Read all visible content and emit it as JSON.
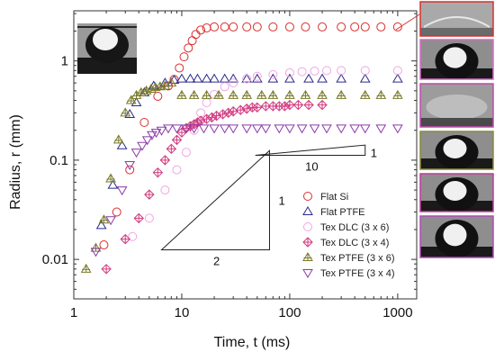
{
  "chart_data": {
    "type": "scatter",
    "xlabel": "Time, t (ms)",
    "ylabel": "Radius, r (mm)",
    "xscale": "log",
    "yscale": "log",
    "xlim": [
      1,
      1500
    ],
    "ylim": [
      0.004,
      3.2
    ],
    "xticks": [
      {
        "v": 1,
        "label": "1"
      },
      {
        "v": 10,
        "label": "10"
      },
      {
        "v": 100,
        "label": "100"
      },
      {
        "v": 1000,
        "label": "1000"
      }
    ],
    "yticks": [
      {
        "v": 0.01,
        "label": "0.01"
      },
      {
        "v": 0.1,
        "label": "0.1"
      },
      {
        "v": 1,
        "label": "1"
      }
    ],
    "legend_position": "lower-right",
    "series": [
      {
        "name": "Flat Si",
        "marker": "circle",
        "color": "#d9302f",
        "x": [
          1.9,
          2.5,
          3.3,
          4.5,
          6.0,
          7.5,
          8.5,
          9.5,
          10.5,
          11.5,
          12.5,
          13.5,
          15,
          17,
          20,
          25,
          30,
          40,
          50,
          70,
          100,
          140,
          200,
          300,
          400,
          500,
          700,
          1000
        ],
        "y": [
          0.014,
          0.03,
          0.08,
          0.24,
          0.44,
          0.56,
          0.65,
          0.85,
          1.1,
          1.35,
          1.6,
          1.85,
          2.05,
          2.15,
          2.2,
          2.2,
          2.2,
          2.2,
          2.2,
          2.2,
          2.2,
          2.2,
          2.2,
          2.2,
          2.2,
          2.2,
          2.2,
          2.2
        ]
      },
      {
        "name": "Flat PTFE",
        "marker": "triangle-up",
        "color": "#2a2a8a",
        "x": [
          1.8,
          2.3,
          2.8,
          3.3,
          3.8,
          4.5,
          5.5,
          7,
          8.5,
          10,
          12,
          14,
          17,
          20,
          25,
          30,
          40,
          50,
          70,
          100,
          150,
          200,
          300,
          500,
          1000
        ],
        "y": [
          0.022,
          0.056,
          0.14,
          0.29,
          0.38,
          0.48,
          0.56,
          0.6,
          0.64,
          0.66,
          0.66,
          0.66,
          0.66,
          0.66,
          0.66,
          0.66,
          0.66,
          0.66,
          0.66,
          0.66,
          0.66,
          0.66,
          0.66,
          0.66,
          0.66
        ]
      },
      {
        "name": "Tex DLC (3 x 6)",
        "marker": "circle",
        "color": "#f0a6e4",
        "x": [
          3.5,
          5,
          7,
          9,
          11,
          13,
          15,
          17,
          20,
          25,
          30,
          40,
          50,
          70,
          100,
          130,
          170,
          220,
          300,
          500,
          1000
        ],
        "y": [
          0.017,
          0.026,
          0.05,
          0.08,
          0.12,
          0.2,
          0.3,
          0.38,
          0.46,
          0.55,
          0.6,
          0.66,
          0.7,
          0.73,
          0.76,
          0.78,
          0.79,
          0.8,
          0.8,
          0.8,
          0.8
        ]
      },
      {
        "name": "Tex DLC (3 x 4)",
        "marker": "diamond-cross",
        "color": "#d03a7e",
        "x": [
          2,
          3,
          4,
          5,
          6,
          7,
          8,
          9,
          10,
          11,
          12,
          13,
          14,
          15,
          17,
          19,
          21,
          24,
          27,
          30,
          35,
          40,
          45,
          50,
          60,
          70,
          80,
          90,
          100,
          120,
          150,
          200
        ],
        "y": [
          0.008,
          0.016,
          0.026,
          0.045,
          0.075,
          0.1,
          0.13,
          0.16,
          0.19,
          0.21,
          0.22,
          0.23,
          0.24,
          0.25,
          0.26,
          0.27,
          0.28,
          0.29,
          0.3,
          0.31,
          0.32,
          0.33,
          0.34,
          0.34,
          0.35,
          0.35,
          0.35,
          0.35,
          0.36,
          0.36,
          0.36,
          0.36
        ]
      },
      {
        "name": "Tex PTFE (3 x 6)",
        "marker": "triangle-cross",
        "color": "#7a7a2a",
        "x": [
          1.3,
          1.6,
          1.9,
          2.2,
          2.6,
          3.0,
          3.4,
          3.8,
          4.2,
          4.7,
          5.2,
          5.7,
          6.3,
          7,
          8,
          10,
          13,
          17,
          22,
          30,
          40,
          55,
          70,
          100,
          140,
          200,
          300,
          500,
          700,
          1000
        ],
        "y": [
          0.008,
          0.013,
          0.025,
          0.065,
          0.16,
          0.3,
          0.4,
          0.45,
          0.48,
          0.5,
          0.52,
          0.54,
          0.55,
          0.56,
          0.6,
          0.45,
          0.45,
          0.45,
          0.45,
          0.45,
          0.45,
          0.45,
          0.45,
          0.45,
          0.45,
          0.45,
          0.45,
          0.45,
          0.45,
          0.45
        ]
      },
      {
        "name": "Tex PTFE (3 x 4)",
        "marker": "triangle-down",
        "color": "#8a3aa8",
        "x": [
          1.6,
          2.2,
          2.8,
          3.3,
          3.8,
          4.3,
          4.8,
          5.3,
          5.8,
          6.5,
          7.5,
          9,
          11,
          13,
          16,
          20,
          25,
          30,
          40,
          50,
          60,
          80,
          100,
          130,
          170,
          220,
          300,
          400,
          500,
          700,
          1000
        ],
        "y": [
          0.012,
          0.025,
          0.05,
          0.09,
          0.12,
          0.14,
          0.16,
          0.18,
          0.19,
          0.2,
          0.21,
          0.21,
          0.21,
          0.21,
          0.21,
          0.21,
          0.21,
          0.21,
          0.21,
          0.21,
          0.21,
          0.21,
          0.21,
          0.21,
          0.21,
          0.21,
          0.21,
          0.21,
          0.21,
          0.21,
          0.21
        ]
      }
    ],
    "annotations": [
      {
        "type": "slope-triangle",
        "rise_label": "1",
        "run_label": "10"
      },
      {
        "type": "slope-triangle",
        "rise_label": "1",
        "run_label": "2"
      }
    ]
  },
  "insets": [
    {
      "name": "droplet-inset-main",
      "frame_color": "#222222"
    },
    {
      "name": "droplet-thumb-1",
      "frame_color": "#d9302f"
    },
    {
      "name": "droplet-thumb-2",
      "frame_color": "#d86ac8"
    },
    {
      "name": "droplet-thumb-3",
      "frame_color": "#c04ab0"
    },
    {
      "name": "droplet-thumb-4",
      "frame_color": "#8a8a3a"
    },
    {
      "name": "droplet-thumb-5",
      "frame_color": "#c03a9a"
    },
    {
      "name": "droplet-thumb-6",
      "frame_color": "#b04ab8"
    }
  ]
}
